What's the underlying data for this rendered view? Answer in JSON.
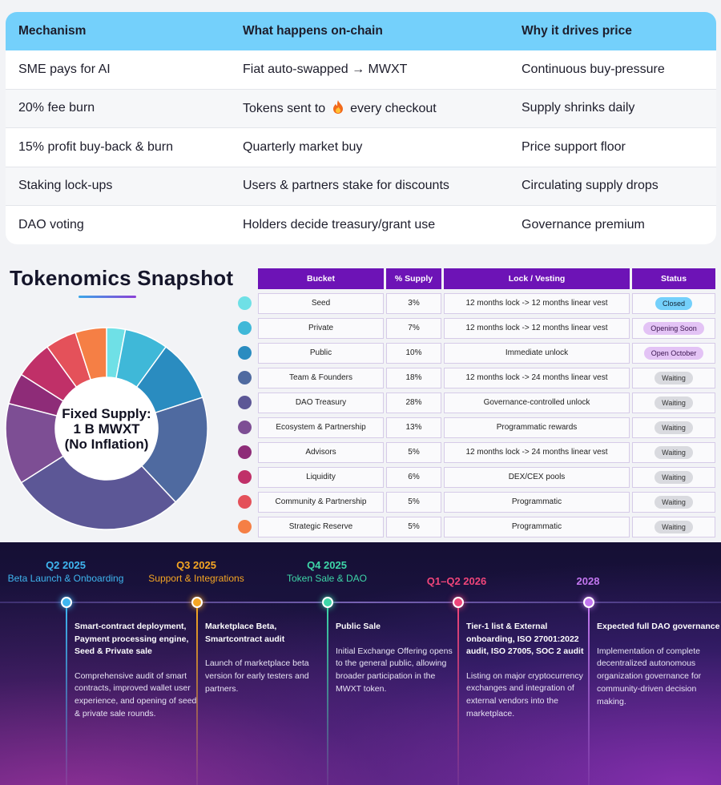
{
  "mechanisms": {
    "headers": [
      "Mechanism",
      "What happens on-chain",
      "Why it drives price"
    ],
    "rows": [
      {
        "mechanism": "SME pays for AI",
        "onchain": "Fiat auto-swapped → MWXT",
        "why": "Continuous buy-pressure"
      },
      {
        "mechanism": "20% fee burn",
        "onchain_pre": "Tokens sent to",
        "onchain_icon": "fire-icon",
        "onchain_post": "every checkout",
        "why": "Supply shrinks daily"
      },
      {
        "mechanism": "15% profit buy-back & burn",
        "onchain": "Quarterly market buy",
        "why": "Price support floor"
      },
      {
        "mechanism": "Staking lock-ups",
        "onchain": "Users & partners stake for discounts",
        "why": "Circulating supply drops"
      },
      {
        "mechanism": "DAO voting",
        "onchain": "Holders decide treasury/grant use",
        "why": "Governance premium"
      }
    ]
  },
  "snapshot": {
    "title": "Tokenomics Snapshot",
    "center_line1": "Fixed Supply:",
    "center_line2": "1 B MWXT",
    "center_line3": "(No Inflation)"
  },
  "chart_data": {
    "type": "pie",
    "categories": [
      "Seed",
      "Private",
      "Public",
      "Team & Founders",
      "DAO Treasury",
      "Ecosystem & Partnership",
      "Advisors",
      "Liquidity",
      "Community & Partnership",
      "Strategic Reserve"
    ],
    "values": [
      3,
      7,
      10,
      18,
      28,
      13,
      5,
      6,
      5,
      5
    ],
    "colors": [
      "#6fe0e6",
      "#3fb8d8",
      "#2a8cc0",
      "#4f6aa0",
      "#5c5796",
      "#7d4e94",
      "#8e2c78",
      "#c03068",
      "#e4515a",
      "#f57f45"
    ]
  },
  "allocation": {
    "headers": [
      "Bucket",
      "% Supply",
      "Lock / Vesting",
      "Status"
    ],
    "rows": [
      {
        "bucket": "Seed",
        "supply": "3%",
        "vesting": "12 months lock -> 12 months linear vest",
        "status": "Closed",
        "kind": "closed"
      },
      {
        "bucket": "Private",
        "supply": "7%",
        "vesting": "12 months lock -> 12 months linear vest",
        "status": "Opening Soon",
        "kind": "soon"
      },
      {
        "bucket": "Public",
        "supply": "10%",
        "vesting": "Immediate unlock",
        "status": "Open October",
        "kind": "soon"
      },
      {
        "bucket": "Team & Founders",
        "supply": "18%",
        "vesting": "12 months lock -> 24 months linear vest",
        "status": "Waiting",
        "kind": "wait"
      },
      {
        "bucket": "DAO Treasury",
        "supply": "28%",
        "vesting": "Governance-controlled unlock",
        "status": "Waiting",
        "kind": "wait"
      },
      {
        "bucket": "Ecosystem & Partnership",
        "supply": "13%",
        "vesting": "Programmatic rewards",
        "status": "Waiting",
        "kind": "wait"
      },
      {
        "bucket": "Advisors",
        "supply": "5%",
        "vesting": "12 months lock -> 24 months linear vest",
        "status": "Waiting",
        "kind": "wait"
      },
      {
        "bucket": "Liquidity",
        "supply": "6%",
        "vesting": "DEX/CEX pools",
        "status": "Waiting",
        "kind": "wait"
      },
      {
        "bucket": "Community & Partnership",
        "supply": "5%",
        "vesting": "Programmatic",
        "status": "Waiting",
        "kind": "wait"
      },
      {
        "bucket": "Strategic Reserve",
        "supply": "5%",
        "vesting": "Programmatic",
        "status": "Waiting",
        "kind": "wait"
      }
    ]
  },
  "roadmap": {
    "milestones": [
      {
        "quarter": "Q2 2025",
        "subtitle": "Beta Launch & Onboarding",
        "color": "#3fb6f0",
        "title": "Smart-contract deployment, Payment processing engine, Seed & Private sale",
        "desc": "Comprehensive audit of smart contracts, improved wallet user experience, and opening of seed & private sale rounds."
      },
      {
        "quarter": "Q3 2025",
        "subtitle": "Support & Integrations",
        "color": "#f5a623",
        "title": "Marketplace Beta, Smartcontract audit",
        "desc": "Launch of marketplace beta version for early testers and partners."
      },
      {
        "quarter": "Q4 2025",
        "subtitle": "Token Sale & DAO",
        "color": "#3ed6a8",
        "title": "Public Sale",
        "desc": "Initial Exchange Offering opens to the general public, allowing broader participation in the MWXT token."
      },
      {
        "quarter": "Q1–Q2 2026",
        "subtitle": "",
        "color": "#f0457a",
        "title": "Tier-1 list & External onboarding, ISO 27001:2022 audit, ISO 27005, SOC 2 audit",
        "desc": "Listing on major cryptocurrency exchanges and integration of external vendors into the marketplace."
      },
      {
        "quarter": "2028",
        "subtitle": "",
        "color": "#c377f0",
        "title": "Expected full DAO governance",
        "desc": "Implementation of complete decentralized autonomous organization governance for community-driven decision making."
      }
    ]
  }
}
